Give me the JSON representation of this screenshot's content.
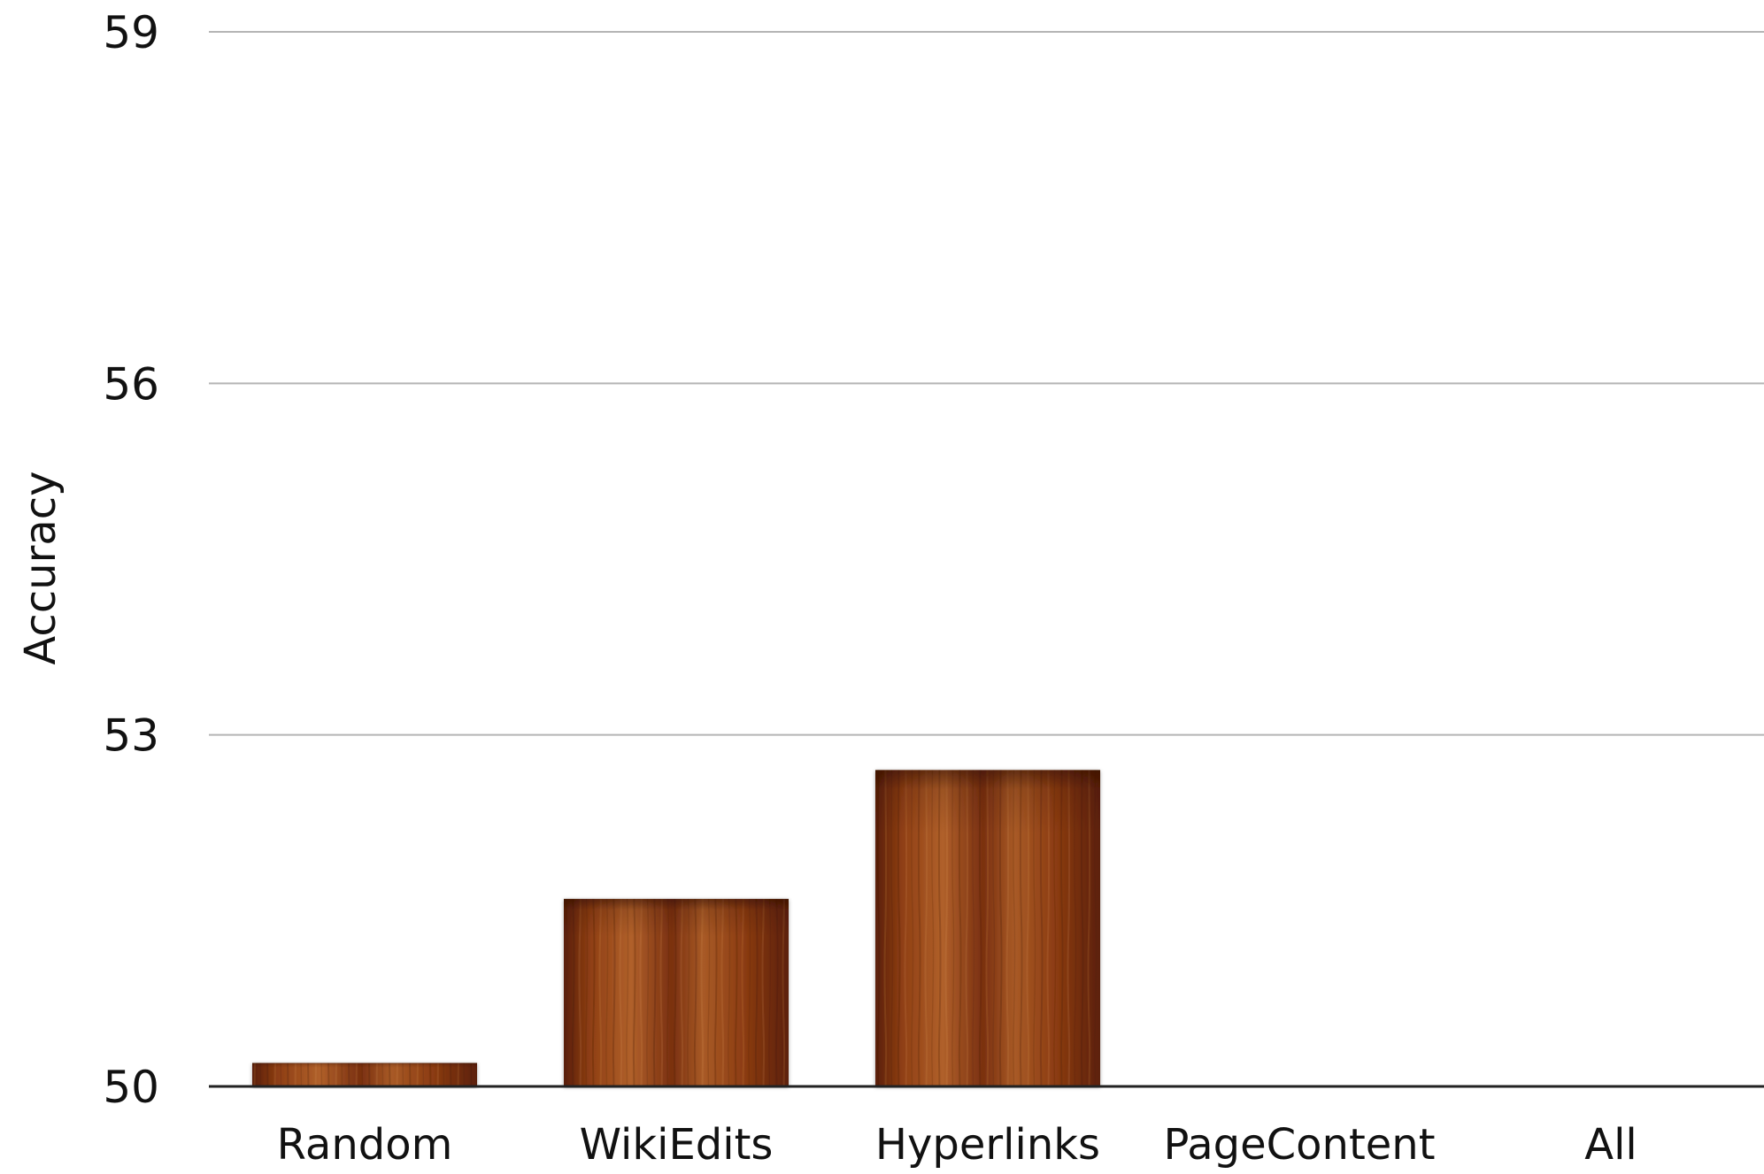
{
  "chart_data": {
    "type": "bar",
    "categories": [
      "Random",
      "WikiEdits",
      "Hyperlinks",
      "PageContent",
      "All"
    ],
    "values": [
      50.2,
      51.6,
      52.7,
      null,
      null
    ],
    "xlabel": "",
    "ylabel": "Accuracy",
    "ylim": [
      50,
      59
    ],
    "yticks": [
      50,
      53,
      56,
      59
    ],
    "grid": true,
    "legend": "none",
    "colors": {
      "bar_light": "#b8632a",
      "bar_mid": "#8a3a12",
      "bar_dark": "#4e1a06",
      "grid": "#b5b5b5",
      "axis": "#222222"
    }
  }
}
